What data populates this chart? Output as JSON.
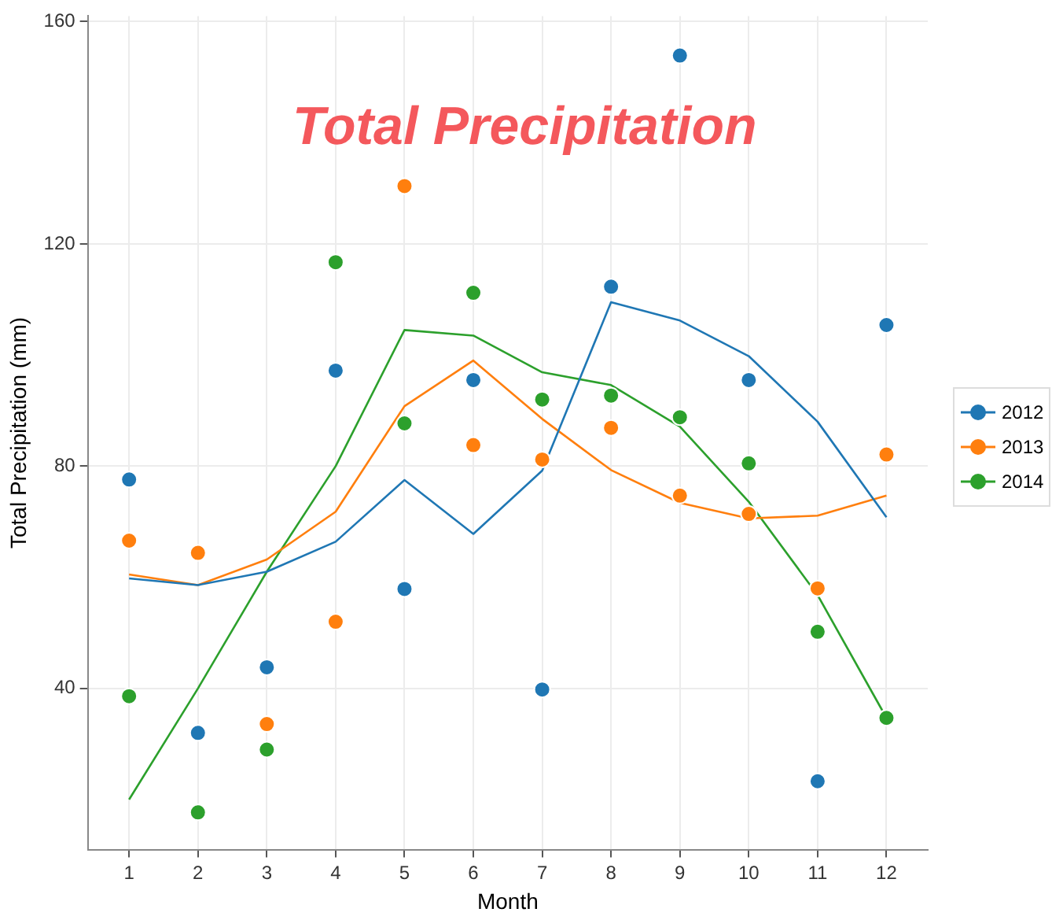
{
  "chart_data": {
    "type": "scatter",
    "title": "Total Precipitation",
    "xlabel": "Month",
    "ylabel": "Total Precipitation (mm)",
    "x": [
      1,
      2,
      3,
      4,
      5,
      6,
      7,
      8,
      9,
      10,
      11,
      12
    ],
    "xlim": [
      0.4,
      12.6
    ],
    "xticks": [
      1,
      2,
      3,
      4,
      5,
      6,
      7,
      8,
      9,
      10,
      11,
      12
    ],
    "ylim": [
      11,
      161
    ],
    "yticks": [
      40,
      80,
      120,
      160
    ],
    "grid": true,
    "legend": "right",
    "series": [
      {
        "name": "2012",
        "marker": "circle",
        "color": "#1f77b4",
        "values": [
          77.6,
          32.0,
          43.8,
          97.2,
          57.9,
          95.5,
          39.8,
          112.3,
          153.9,
          95.5,
          23.3,
          105.4
        ]
      },
      {
        "name": "2013",
        "marker": "circle",
        "color": "#ff7f0e",
        "values": [
          66.6,
          64.4,
          33.6,
          52.0,
          130.4,
          83.8,
          81.2,
          86.9,
          74.7,
          71.4,
          58.0,
          82.1
        ]
      },
      {
        "name": "2014",
        "marker": "circle",
        "color": "#2ca02c",
        "values": [
          38.6,
          17.7,
          29.0,
          116.7,
          87.7,
          111.2,
          92.0,
          92.7,
          88.8,
          80.5,
          50.2,
          34.7
        ]
      },
      {
        "type": "line",
        "marker": "none",
        "color": "#1f77b4",
        "values": [
          59.8,
          58.6,
          61.0,
          66.4,
          77.5,
          67.8,
          79.2,
          109.5,
          106.2,
          99.8,
          88.0,
          70.8
        ]
      },
      {
        "type": "line",
        "marker": "none",
        "color": "#ff7f0e",
        "values": [
          60.5,
          58.6,
          63.2,
          71.8,
          90.8,
          99.0,
          88.5,
          79.3,
          73.4,
          70.6,
          71.1,
          74.7
        ]
      },
      {
        "type": "line",
        "marker": "none",
        "color": "#2ca02c",
        "values": [
          20.0,
          40.0,
          61.0,
          80.0,
          104.5,
          103.5,
          96.9,
          94.6,
          87.1,
          73.6,
          56.8,
          34.7
        ]
      }
    ]
  }
}
